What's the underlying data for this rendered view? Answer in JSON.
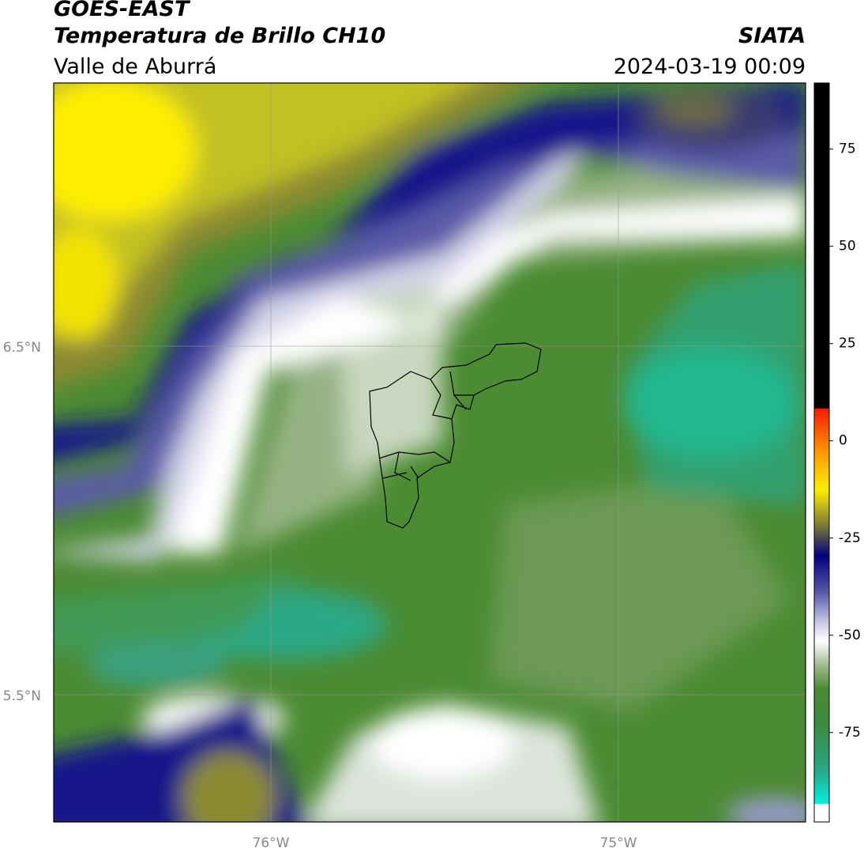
{
  "header": {
    "title": "GOES-EAST",
    "subtitle": "Temperatura de Brillo CH10",
    "region": "Valle de Aburrá",
    "source": "SIATA",
    "datetime": "2024-03-19 00:09"
  },
  "graticule": {
    "latitudes": [
      "6.5°N",
      "5.5°N"
    ],
    "longitudes": [
      "76°W",
      "75°W"
    ]
  },
  "colorbar": {
    "lim": [
      -98,
      92
    ],
    "ticks": [
      75,
      50,
      25,
      0,
      -25,
      -50,
      -75
    ]
  }
}
